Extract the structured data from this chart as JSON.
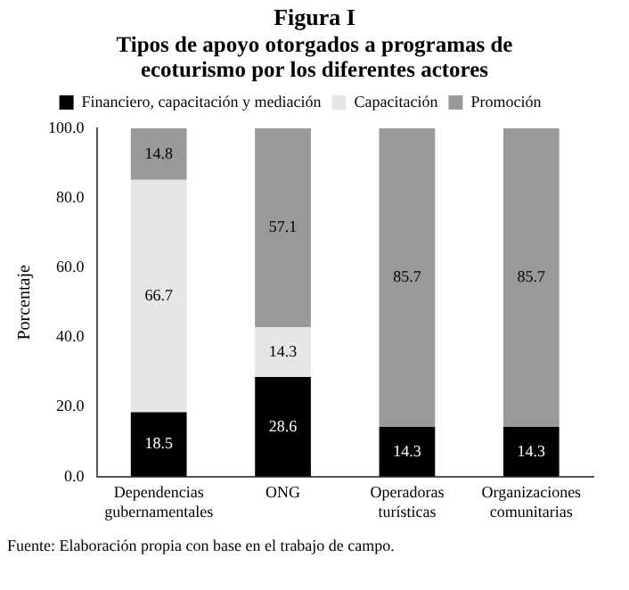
{
  "chart_data": {
    "type": "bar",
    "title": "Figura I",
    "subtitle": "Tipos de apoyo otorgados a programas de ecoturismo por los diferentes actores",
    "ylabel": "Porcentaje",
    "categories": [
      "Dependencias gubernamentales",
      "ONG",
      "Operadoras turísticas",
      "Organizaciones comunitarias"
    ],
    "stacked": true,
    "legend": "top",
    "grid": false,
    "series": [
      {
        "name": "Financiero, capacitación y mediación",
        "color": "#000000",
        "values": [
          18.5,
          28.6,
          14.3,
          14.3
        ],
        "value_labels": [
          "18.5",
          "28.6",
          "14.3",
          "14.3"
        ]
      },
      {
        "name": "Capacitación",
        "color": "#e6e6e6",
        "values": [
          66.7,
          14.3,
          0,
          0
        ],
        "value_labels": [
          "66.7",
          "14.3",
          null,
          null
        ]
      },
      {
        "name": "Promoción",
        "color": "#999999",
        "values": [
          14.8,
          57.1,
          85.7,
          85.7
        ],
        "value_labels": [
          "14.8",
          "57.1",
          "85.7",
          "85.7"
        ]
      }
    ],
    "ylim": [
      0,
      100
    ],
    "yticks": [
      {
        "value": 0,
        "label": "0.0"
      },
      {
        "value": 20,
        "label": "20.0"
      },
      {
        "value": 40,
        "label": "40.0"
      },
      {
        "value": 60,
        "label": "60.0"
      },
      {
        "value": 80,
        "label": "80.0"
      },
      {
        "value": 100,
        "label": "100.0"
      }
    ],
    "annotations": [
      "Fuente: Elaboración propia con base en el trabajo de campo."
    ]
  }
}
